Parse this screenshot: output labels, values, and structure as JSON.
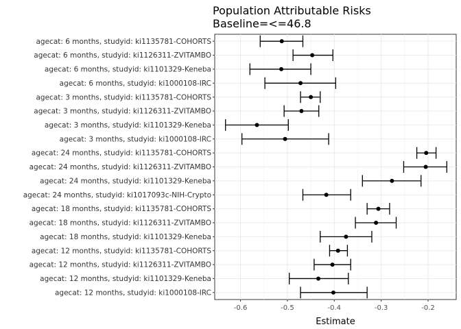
{
  "chart_data": {
    "type": "scatter",
    "orientation": "horizontal-forest",
    "title": [
      "Population Attributable Risks",
      "Baseline=<=46.8"
    ],
    "xlabel": "Estimate",
    "ylabel": "",
    "xlim": [
      -0.655,
      -0.14
    ],
    "xticks": [
      -0.6,
      -0.5,
      -0.4,
      -0.3,
      -0.2
    ],
    "xtick_labels": [
      "-0.6",
      "-0.5",
      "-0.4",
      "-0.3",
      "-0.2"
    ],
    "grid": true,
    "legend": "none",
    "rows": [
      {
        "label": "agecat: 6 months, studyid: ki1135781-COHORTS",
        "est": -0.512,
        "lo": -0.558,
        "hi": -0.467
      },
      {
        "label": "agecat: 6 months, studyid: ki1126311-ZVITAMBO",
        "est": -0.447,
        "lo": -0.488,
        "hi": -0.403
      },
      {
        "label": "agecat: 6 months, studyid: ki1101329-Keneba",
        "est": -0.513,
        "lo": -0.58,
        "hi": -0.45
      },
      {
        "label": "agecat: 6 months, studyid: ki1000108-IRC",
        "est": -0.472,
        "lo": -0.548,
        "hi": -0.397
      },
      {
        "label": "agecat: 3 months, studyid: ki1135781-COHORTS",
        "est": -0.45,
        "lo": -0.472,
        "hi": -0.43
      },
      {
        "label": "agecat: 3 months, studyid: ki1126311-ZVITAMBO",
        "est": -0.47,
        "lo": -0.507,
        "hi": -0.433
      },
      {
        "label": "agecat: 3 months, studyid: ki1101329-Keneba",
        "est": -0.565,
        "lo": -0.632,
        "hi": -0.498
      },
      {
        "label": "agecat: 3 months, studyid: ki1000108-IRC",
        "est": -0.505,
        "lo": -0.597,
        "hi": -0.412
      },
      {
        "label": "agecat: 24 months, studyid: ki1135781-COHORTS",
        "est": -0.204,
        "lo": -0.224,
        "hi": -0.183
      },
      {
        "label": "agecat: 24 months, studyid: ki1126311-ZVITAMBO",
        "est": -0.205,
        "lo": -0.252,
        "hi": -0.16
      },
      {
        "label": "agecat: 24 months, studyid: ki1101329-Keneba",
        "est": -0.277,
        "lo": -0.34,
        "hi": -0.215
      },
      {
        "label": "agecat: 24 months, studyid: ki1017093c-NIH-Crypto",
        "est": -0.417,
        "lo": -0.467,
        "hi": -0.365
      },
      {
        "label": "agecat: 18 months, studyid: ki1135781-COHORTS",
        "est": -0.306,
        "lo": -0.33,
        "hi": -0.282
      },
      {
        "label": "agecat: 18 months, studyid: ki1126311-ZVITAMBO",
        "est": -0.311,
        "lo": -0.355,
        "hi": -0.268
      },
      {
        "label": "agecat: 18 months, studyid: ki1101329-Keneba",
        "est": -0.375,
        "lo": -0.43,
        "hi": -0.32
      },
      {
        "label": "agecat: 12 months, studyid: ki1135781-COHORTS",
        "est": -0.392,
        "lo": -0.41,
        "hi": -0.372
      },
      {
        "label": "agecat: 12 months, studyid: ki1126311-ZVITAMBO",
        "est": -0.404,
        "lo": -0.443,
        "hi": -0.365
      },
      {
        "label": "agecat: 12 months, studyid: ki1101329-Keneba",
        "est": -0.434,
        "lo": -0.496,
        "hi": -0.37
      },
      {
        "label": "agecat: 12 months, studyid: ki1000108-IRC",
        "est": -0.402,
        "lo": -0.472,
        "hi": -0.33
      }
    ]
  }
}
